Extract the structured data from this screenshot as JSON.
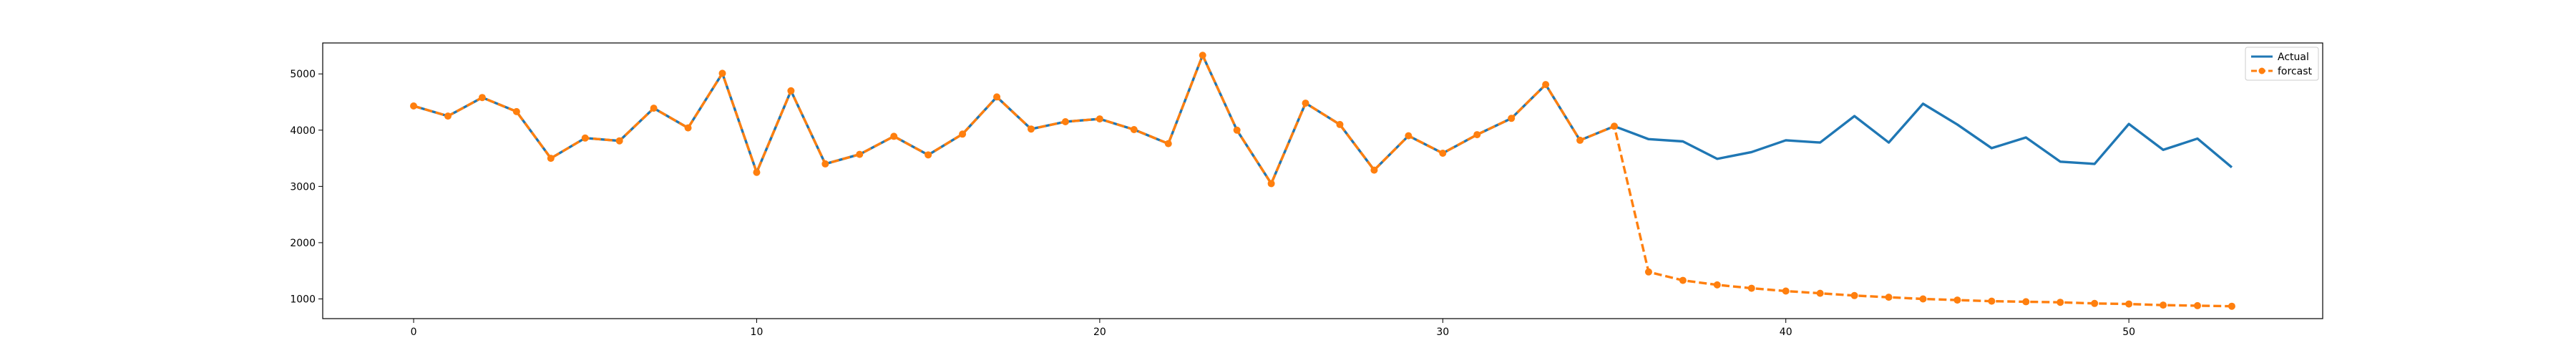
{
  "chart_data": {
    "type": "line",
    "title": "",
    "xlabel": "",
    "ylabel": "",
    "xlim": [
      -2.65,
      55.65
    ],
    "ylim": [
      650,
      5550
    ],
    "xticks": [
      0,
      10,
      20,
      30,
      40,
      50
    ],
    "yticks": [
      1000,
      2000,
      3000,
      4000,
      5000
    ],
    "grid": false,
    "legend": "top-right",
    "series": [
      {
        "name": "Actual",
        "color": "#1f77b4",
        "style": "solid",
        "x": [
          0,
          1,
          2,
          3,
          4,
          5,
          6,
          7,
          8,
          9,
          10,
          11,
          12,
          13,
          14,
          15,
          16,
          17,
          18,
          19,
          20,
          21,
          22,
          23,
          24,
          25,
          26,
          27,
          28,
          29,
          30,
          31,
          32,
          33,
          34,
          35,
          36,
          37,
          38,
          39,
          40,
          41,
          42,
          43,
          44,
          45,
          46,
          47,
          48,
          49,
          50,
          51,
          52,
          53
        ],
        "values": [
          4430,
          4250,
          4580,
          4330,
          3500,
          3860,
          3810,
          4390,
          4040,
          5010,
          3250,
          4700,
          3400,
          3570,
          3890,
          3560,
          3930,
          4590,
          4020,
          4150,
          4200,
          4010,
          3760,
          5330,
          4000,
          3050,
          4480,
          4100,
          3290,
          3900,
          3590,
          3920,
          4210,
          4810,
          3820,
          4070,
          3840,
          3800,
          3490,
          3610,
          3820,
          3780,
          4250,
          3780,
          4470,
          4100,
          3680,
          3870,
          3440,
          3400,
          4110,
          3650,
          3850,
          3340
        ]
      },
      {
        "name": "forcast",
        "color": "#ff7f0e",
        "style": "dashed",
        "marker": "circle",
        "x": [
          0,
          1,
          2,
          3,
          4,
          5,
          6,
          7,
          8,
          9,
          10,
          11,
          12,
          13,
          14,
          15,
          16,
          17,
          18,
          19,
          20,
          21,
          22,
          23,
          24,
          25,
          26,
          27,
          28,
          29,
          30,
          31,
          32,
          33,
          34,
          35,
          36,
          37,
          38,
          39,
          40,
          41,
          42,
          43,
          44,
          45,
          46,
          47,
          48,
          49,
          50,
          51,
          52,
          53
        ],
        "values": [
          4430,
          4250,
          4580,
          4330,
          3500,
          3860,
          3810,
          4390,
          4040,
          5010,
          3250,
          4700,
          3400,
          3570,
          3890,
          3560,
          3930,
          4590,
          4020,
          4150,
          4200,
          4010,
          3760,
          5330,
          4000,
          3050,
          4480,
          4100,
          3290,
          3900,
          3590,
          3920,
          4210,
          4810,
          3820,
          4070,
          1480,
          1330,
          1250,
          1190,
          1140,
          1100,
          1060,
          1030,
          1000,
          980,
          960,
          950,
          940,
          920,
          910,
          890,
          880,
          870
        ]
      }
    ]
  }
}
